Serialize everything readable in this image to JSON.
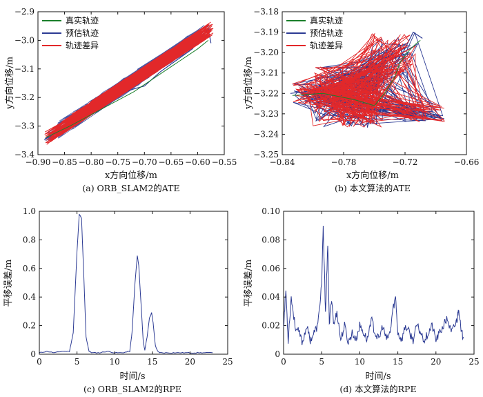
{
  "colors": {
    "true": "#1a7f2a",
    "est": "#2b3a93",
    "diff": "#e2282a",
    "axis": "#111111"
  },
  "chart_data": [
    {
      "type": "line",
      "caption": "(a) ORB_SLAM2的ATE",
      "xlabel": "x方向位移/m",
      "ylabel": "y方向位移/m",
      "xlim": [
        -0.9,
        -0.55
      ],
      "ylim": [
        -3.4,
        -2.9
      ],
      "x_ticks": [
        -0.9,
        -0.85,
        -0.8,
        -0.75,
        -0.7,
        -0.65,
        -0.6,
        -0.55
      ],
      "x_tick_labels": [
        "−0.90",
        "−0.85",
        "−0.80",
        "−0.75",
        "−0.70",
        "−0.65",
        "−0.60",
        "−0.55"
      ],
      "y_ticks": [
        -3.4,
        -3.3,
        -3.2,
        -3.1,
        -3.0,
        -2.9
      ],
      "y_tick_labels": [
        "−3.4",
        "−3.3",
        "−3.2",
        "−3.1",
        "−3.0",
        "−2.9"
      ],
      "legend": [
        "真实轨迹",
        "预估轨迹",
        "轨迹差异"
      ],
      "legend_position": "top-left",
      "series": [
        {
          "name": "真实轨迹",
          "x": [
            -0.885,
            -0.84,
            -0.8,
            -0.76,
            -0.72,
            -0.68,
            -0.64,
            -0.6,
            -0.58
          ],
          "y": [
            -3.34,
            -3.3,
            -3.26,
            -3.22,
            -3.18,
            -3.13,
            -3.08,
            -3.03,
            -3.0
          ]
        },
        {
          "name": "预估轨迹",
          "x": [
            -0.887,
            -0.85,
            -0.81,
            -0.78,
            -0.75,
            -0.72,
            -0.7,
            -0.67,
            -0.64,
            -0.61,
            -0.58,
            -0.575
          ],
          "y": [
            -3.345,
            -3.31,
            -3.27,
            -3.24,
            -3.19,
            -3.17,
            -3.16,
            -3.11,
            -3.07,
            -3.03,
            -2.96,
            -3.01
          ]
        }
      ]
    },
    {
      "type": "line",
      "caption": "(b) 本文算法的ATE",
      "xlabel": "x方向位移/m",
      "ylabel": "y方向位移/m",
      "xlim": [
        -0.84,
        -0.66
      ],
      "ylim": [
        -3.25,
        -3.18
      ],
      "x_ticks": [
        -0.84,
        -0.78,
        -0.72,
        -0.66
      ],
      "x_tick_labels": [
        "−0.84",
        "−0.78",
        "−0.72",
        "−0.66"
      ],
      "y_ticks": [
        -3.25,
        -3.24,
        -3.23,
        -3.22,
        -3.21,
        -3.2,
        -3.19,
        -3.18
      ],
      "y_tick_labels": [
        "−3.25",
        "−3.24",
        "−3.23",
        "−3.22",
        "−3.21",
        "−3.20",
        "−3.19",
        "−3.18"
      ],
      "legend": [
        "真实轨迹",
        "预估轨迹",
        "轨迹差异"
      ],
      "legend_position": "top-left",
      "series": [
        {
          "name": "真实轨迹",
          "x": [
            -0.83,
            -0.8,
            -0.77,
            -0.75,
            -0.74,
            -0.73,
            -0.725,
            -0.718,
            -0.71,
            -0.705
          ],
          "y": [
            -3.221,
            -3.22,
            -3.223,
            -3.226,
            -3.22,
            -3.212,
            -3.205,
            -3.2,
            -3.196,
            -3.194
          ]
        },
        {
          "name": "预估轨迹",
          "x": [
            -0.832,
            -0.8,
            -0.775,
            -0.76,
            -0.745,
            -0.735,
            -0.73,
            -0.722,
            -0.712,
            -0.703
          ],
          "y": [
            -3.22,
            -3.218,
            -3.226,
            -3.236,
            -3.23,
            -3.216,
            -3.206,
            -3.2,
            -3.19,
            -3.193
          ]
        }
      ]
    },
    {
      "type": "line",
      "caption": "(c) ORB_SLAM2的RPE",
      "xlabel": "时间/s",
      "ylabel": "平移误差/m",
      "xlim": [
        0,
        25
      ],
      "ylim": [
        0,
        1.0
      ],
      "x_ticks": [
        0,
        5,
        10,
        15,
        20,
        25
      ],
      "x_tick_labels": [
        "0",
        "5",
        "10",
        "15",
        "20",
        "25"
      ],
      "y_ticks": [
        0,
        0.2,
        0.4,
        0.6,
        0.8,
        1.0
      ],
      "y_tick_labels": [
        "0",
        "0.2",
        "0.4",
        "0.6",
        "0.8",
        "1.0"
      ],
      "series": [
        {
          "name": "",
          "x": [
            0,
            1,
            2,
            3,
            4,
            4.5,
            5,
            5.3,
            5.6,
            5.9,
            6.2,
            6.6,
            7,
            8,
            9,
            10,
            11,
            12,
            12.3,
            12.7,
            13,
            13.2,
            13.5,
            13.8,
            14,
            14.3,
            14.6,
            14.9,
            15.1,
            15.4,
            15.7,
            16,
            17,
            18,
            19,
            20,
            21,
            22,
            23
          ],
          "y": [
            0.01,
            0.02,
            0.01,
            0.02,
            0.02,
            0.15,
            0.72,
            0.98,
            0.95,
            0.55,
            0.12,
            0.02,
            0.01,
            0.01,
            0.02,
            0.01,
            0.01,
            0.02,
            0.15,
            0.5,
            0.69,
            0.62,
            0.35,
            0.08,
            0.03,
            0.12,
            0.25,
            0.29,
            0.22,
            0.06,
            0.02,
            0.01,
            0.01,
            0.01,
            0.01,
            0.01,
            0.01,
            0.01,
            0.01
          ]
        }
      ]
    },
    {
      "type": "line",
      "caption": "(d) 本文算法的RPE",
      "xlabel": "时间/s",
      "ylabel": "平移误差/m",
      "xlim": [
        0,
        25
      ],
      "ylim": [
        0,
        0.1
      ],
      "x_ticks": [
        0,
        5,
        10,
        15,
        20,
        25
      ],
      "x_tick_labels": [
        "0",
        "5",
        "10",
        "15",
        "20",
        "25"
      ],
      "y_ticks": [
        0,
        0.02,
        0.04,
        0.06,
        0.08,
        0.1
      ],
      "y_tick_labels": [
        "0",
        "0.02",
        "0.04",
        "0.06",
        "0.08",
        "0.10"
      ],
      "series": [
        {
          "name": "",
          "x": [
            0,
            0.3,
            0.6,
            1,
            1.5,
            2,
            2.5,
            3,
            3.5,
            4,
            4.5,
            5,
            5.2,
            5.5,
            5.8,
            6,
            6.3,
            6.6,
            7,
            7.5,
            8,
            8.5,
            9,
            9.5,
            10,
            10.5,
            11,
            11.5,
            12,
            12.5,
            13,
            13.5,
            14,
            14.3,
            14.7,
            15,
            15.5,
            16,
            16.5,
            17,
            17.5,
            18,
            18.5,
            19,
            19.5,
            20,
            20.5,
            21,
            21.5,
            22,
            22.5,
            22.8,
            23,
            23.3,
            23.6
          ],
          "y": [
            0.02,
            0.045,
            0.01,
            0.04,
            0.02,
            0.015,
            0.008,
            0.02,
            0.01,
            0.015,
            0.02,
            0.05,
            0.088,
            0.03,
            0.075,
            0.02,
            0.04,
            0.02,
            0.03,
            0.01,
            0.02,
            0.008,
            0.015,
            0.01,
            0.02,
            0.015,
            0.01,
            0.025,
            0.015,
            0.01,
            0.02,
            0.01,
            0.015,
            0.03,
            0.04,
            0.015,
            0.01,
            0.02,
            0.015,
            0.01,
            0.02,
            0.015,
            0.01,
            0.015,
            0.02,
            0.01,
            0.015,
            0.02,
            0.025,
            0.015,
            0.02,
            0.025,
            0.033,
            0.015,
            0.012
          ]
        }
      ]
    }
  ]
}
